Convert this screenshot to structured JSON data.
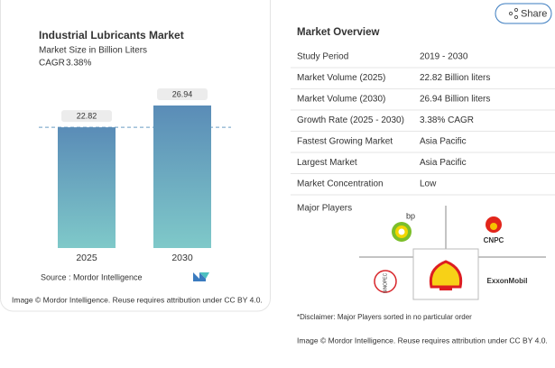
{
  "chart_data": {
    "type": "bar",
    "title": "Industrial Lubricants Market",
    "subtitle": "Market Size in Billion Liters",
    "cagr_label": "CAGR",
    "cagr_value": "3.38%",
    "categories": [
      "2025",
      "2030"
    ],
    "values": [
      22.82,
      26.94
    ],
    "ylim": [
      0,
      30
    ],
    "source": "Source :  Mordor Intelligence",
    "footer": "Image © Mordor Intelligence. Reuse requires attribution under CC BY 4.0."
  },
  "share": "Share",
  "overview": {
    "title": "Market Overview",
    "rows": [
      [
        "Study Period",
        "2019 - 2030"
      ],
      [
        "Market Volume (2025)",
        "22.82 Billion liters"
      ],
      [
        "Market Volume (2030)",
        "26.94 Billion liters"
      ],
      [
        "Growth Rate (2025 - 2030)",
        "3.38% CAGR"
      ],
      [
        "Fastest Growing Market",
        "Asia Pacific"
      ],
      [
        "Largest Market",
        "Asia Pacific"
      ],
      [
        "Market Concentration",
        "Low"
      ]
    ],
    "players_label": "Major Players",
    "logos": [
      "bp",
      "CNPC",
      "SINOPEC",
      "ExxonMobil"
    ],
    "disclaimer": "*Disclaimer: Major Players sorted in no particular order",
    "footer": "Image © Mordor Intelligence. Reuse requires attribution under CC BY 4.0."
  }
}
